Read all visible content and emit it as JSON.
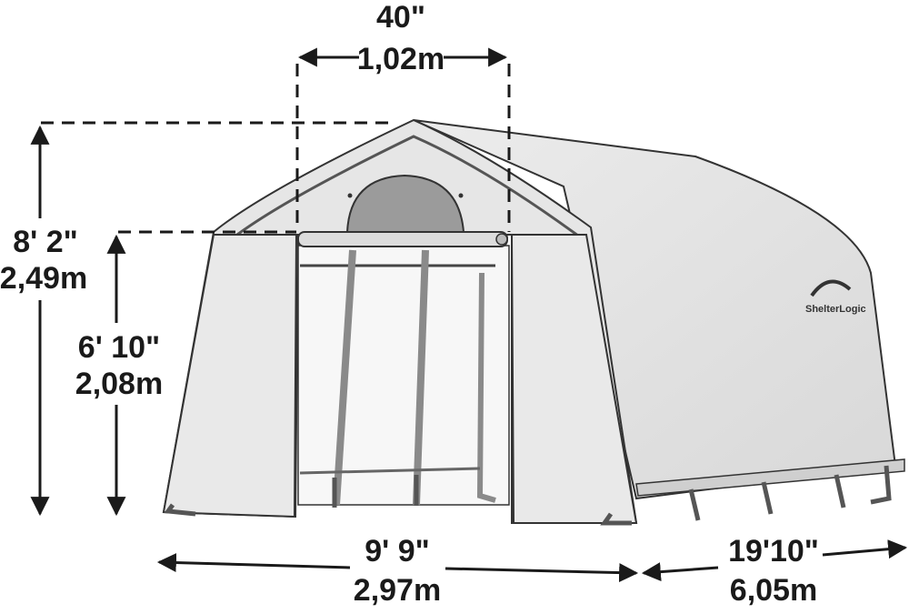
{
  "dimensions": {
    "door_width": {
      "imperial": "40\"",
      "metric": "1,02m"
    },
    "total_height": {
      "imperial": "8' 2\"",
      "metric": "2,49m"
    },
    "door_height": {
      "imperial": "6' 10\"",
      "metric": "2,08m"
    },
    "front_width": {
      "imperial": "9' 9\"",
      "metric": "2,97m"
    },
    "length": {
      "imperial": "19'10\"",
      "metric": "6,05m"
    }
  },
  "brand": {
    "logo_text": "ShelterLogic"
  },
  "colors": {
    "ink": "#1a1a1a",
    "fabric": "#e3e3e3",
    "fabric_shade": "#d2d2d2",
    "frame": "#9a9a9a"
  }
}
